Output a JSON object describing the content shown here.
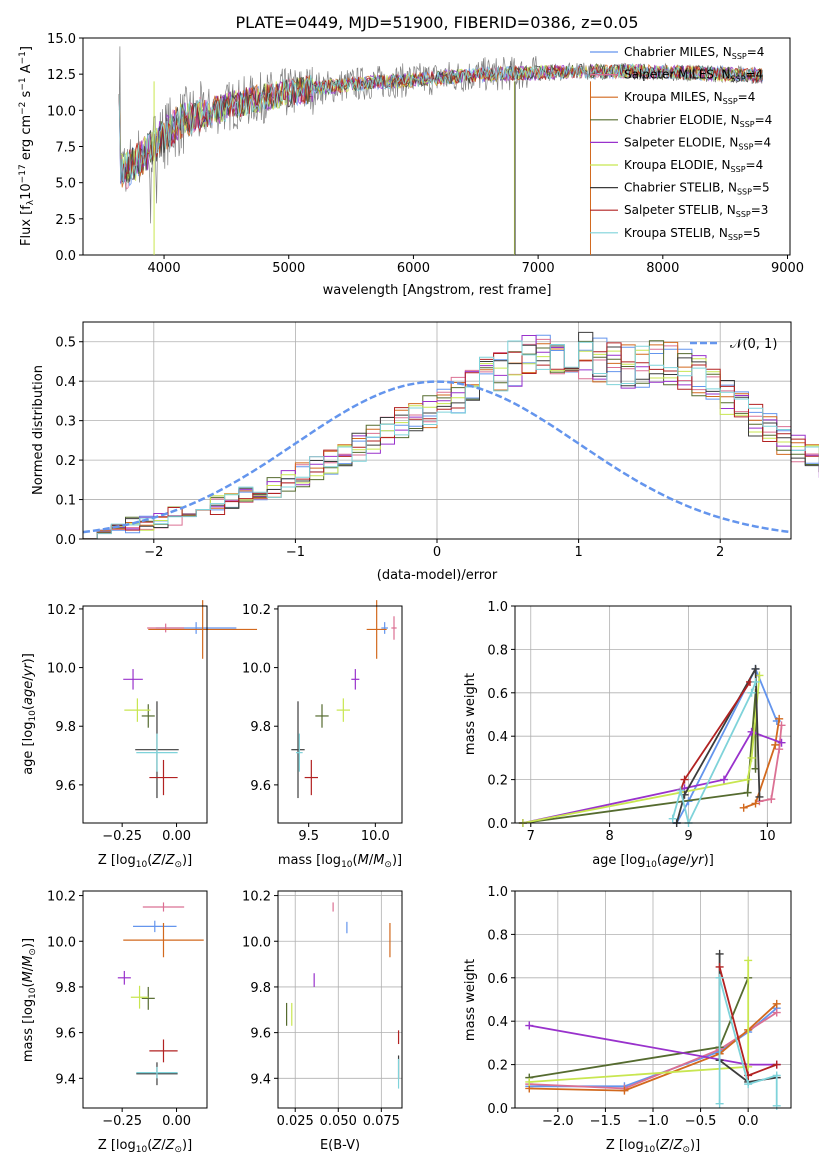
{
  "chart_data": [
    {
      "id": "spectrum",
      "type": "line",
      "title": "PLATE=0449, MJD=51900, FIBERID=0386, z=0.05",
      "xlabel": "wavelength [Angstrom, rest frame]",
      "ylabel": "Flux [f_λ 10^-17 erg cm^-2 s^-1 A^-1]",
      "xlim": [
        3350,
        9020
      ],
      "ylim": [
        0,
        15
      ],
      "xticks": [
        "4000",
        "5000",
        "6000",
        "7000",
        "8000",
        "9000"
      ],
      "yticks": [
        "0.0",
        "2.5",
        "5.0",
        "7.5",
        "10.0",
        "12.5",
        "15.0"
      ],
      "legend_position": "upper-right",
      "data_color": "#808080",
      "continuum": {
        "x": [
          3650,
          3700,
          3800,
          3900,
          4000,
          4100,
          4200,
          4400,
          4600,
          4800,
          5000,
          5200,
          5500,
          5800,
          6000,
          6300,
          6600,
          7000,
          7400,
          7800,
          8200,
          8600,
          8800
        ],
        "y": [
          6.0,
          5.8,
          6.6,
          7.4,
          8.3,
          9.0,
          9.4,
          10.0,
          10.5,
          10.9,
          11.2,
          11.5,
          11.8,
          12.0,
          12.1,
          12.3,
          12.5,
          12.6,
          12.7,
          12.7,
          12.6,
          12.5,
          12.4
        ]
      },
      "series": [
        {
          "name": "Chabrier MILES, N_SSP=4",
          "color": "#6495ED"
        },
        {
          "name": "Salpeter MILES, N_SSP=4",
          "color": "#DB7093"
        },
        {
          "name": "Kroupa MILES, N_SSP=4",
          "color": "#D2691E"
        },
        {
          "name": "Chabrier ELODIE, N_SSP=4",
          "color": "#556B2F"
        },
        {
          "name": "Salpeter ELODIE, N_SSP=4",
          "color": "#9932CC"
        },
        {
          "name": "Kroupa ELODIE, N_SSP=4",
          "color": "#C8E650"
        },
        {
          "name": "Chabrier STELIB, N_SSP=5",
          "color": "#3C3C3C"
        },
        {
          "name": "Salpeter STELIB, N_SSP=3",
          "color": "#B22222"
        },
        {
          "name": "Kroupa STELIB, N_SSP=5",
          "color": "#7FD3DA"
        }
      ]
    },
    {
      "id": "residuals",
      "type": "histogram",
      "xlabel": "(data-model)/error",
      "ylabel": "Normed distribution",
      "xlim": [
        -2.5,
        2.5
      ],
      "ylim": [
        0,
        0.55
      ],
      "xticks": [
        "−2",
        "−1",
        "0",
        "1",
        "2"
      ],
      "yticks": [
        "0.0",
        "0.1",
        "0.2",
        "0.3",
        "0.4",
        "0.5"
      ],
      "legend": "𝒩(0, 1)",
      "legend_position": "upper-right",
      "bin_width": 0.1,
      "bins_from": -2.5,
      "base_values": [
        0.02,
        0.025,
        0.03,
        0.035,
        0.042,
        0.05,
        0.058,
        0.066,
        0.075,
        0.085,
        0.095,
        0.107,
        0.12,
        0.133,
        0.147,
        0.162,
        0.178,
        0.194,
        0.212,
        0.23,
        0.25,
        0.27,
        0.29,
        0.31,
        0.33,
        0.35,
        0.37,
        0.39,
        0.41,
        0.43,
        0.445,
        0.46,
        0.47,
        0.475,
        0.472,
        0.465,
        0.455,
        0.445,
        0.44,
        0.44,
        0.445,
        0.445,
        0.43,
        0.41,
        0.39,
        0.36,
        0.33,
        0.3,
        0.275,
        0.25,
        0.23,
        0.21,
        0.19,
        0.172,
        0.155,
        0.14,
        0.125,
        0.112,
        0.1,
        0.088,
        0.077,
        0.067,
        0.058,
        0.05,
        0.043,
        0.037,
        0.032,
        0.027,
        0.023,
        0.02
      ],
      "normal_curve_color": "#6495ED"
    },
    {
      "id": "age-vs-Z",
      "type": "errorbar",
      "xlabel": "Z [log10(Z/Z⊙)]",
      "ylabel": "age [log10(age/yr)]",
      "xlim": [
        -0.43,
        0.14
      ],
      "ylim": [
        9.47,
        10.21
      ],
      "xticks": [
        "−0.25",
        "0.00"
      ],
      "yticks": [
        "9.6",
        "9.8",
        "10.0",
        "10.2"
      ],
      "points": [
        {
          "series": "Chabrier MILES",
          "x": 0.09,
          "y": 10.135,
          "xerr": 0.37,
          "yerr": 0.04
        },
        {
          "series": "Salpeter MILES",
          "x": -0.05,
          "y": 10.135,
          "xerr": 0.17,
          "yerr": 0.03
        },
        {
          "series": "Kroupa MILES",
          "x": 0.12,
          "y": 10.13,
          "xerr": 0.5,
          "yerr": 0.2
        },
        {
          "series": "Chabrier ELODIE",
          "x": -0.13,
          "y": 9.835,
          "xerr": 0.06,
          "yerr": 0.08
        },
        {
          "series": "Salpeter ELODIE",
          "x": -0.2,
          "y": 9.96,
          "xerr": 0.09,
          "yerr": 0.07
        },
        {
          "series": "Kroupa ELODIE",
          "x": -0.18,
          "y": 9.855,
          "xerr": 0.12,
          "yerr": 0.08
        },
        {
          "series": "Chabrier STELIB",
          "x": -0.09,
          "y": 9.72,
          "xerr": 0.2,
          "yerr": 0.33
        },
        {
          "series": "Salpeter STELIB",
          "x": -0.06,
          "y": 9.625,
          "xerr": 0.13,
          "yerr": 0.12
        },
        {
          "series": "Kroupa STELIB",
          "x": -0.09,
          "y": 9.71,
          "xerr": 0.19,
          "yerr": 0.13
        }
      ]
    },
    {
      "id": "age-vs-mass",
      "type": "errorbar",
      "xlabel": "mass [log10(M/M⊙)]",
      "ylabel": "",
      "xlim": [
        9.27,
        10.2
      ],
      "ylim": [
        9.47,
        10.21
      ],
      "xticks": [
        "9.5",
        "10.0"
      ],
      "yticks": [
        "9.6",
        "9.8",
        "10.0",
        "10.2"
      ],
      "points": [
        {
          "series": "Chabrier MILES",
          "x": 10.07,
          "y": 10.135,
          "xerr": 0.05,
          "yerr": 0.04
        },
        {
          "series": "Salpeter MILES",
          "x": 10.14,
          "y": 10.135,
          "xerr": 0.04,
          "yerr": 0.08
        },
        {
          "series": "Kroupa MILES",
          "x": 10.01,
          "y": 10.13,
          "xerr": 0.15,
          "yerr": 0.2
        },
        {
          "series": "Chabrier ELODIE",
          "x": 9.6,
          "y": 9.835,
          "xerr": 0.1,
          "yerr": 0.08
        },
        {
          "series": "Salpeter ELODIE",
          "x": 9.85,
          "y": 9.96,
          "xerr": 0.06,
          "yerr": 0.07
        },
        {
          "series": "Kroupa ELODIE",
          "x": 9.76,
          "y": 9.855,
          "xerr": 0.1,
          "yerr": 0.08
        },
        {
          "series": "Chabrier STELIB",
          "x": 9.42,
          "y": 9.72,
          "xerr": 0.1,
          "yerr": 0.33
        },
        {
          "series": "Salpeter STELIB",
          "x": 9.52,
          "y": 9.625,
          "xerr": 0.1,
          "yerr": 0.12
        },
        {
          "series": "Kroupa STELIB",
          "x": 9.43,
          "y": 9.71,
          "xerr": 0.05,
          "yerr": 0.13
        }
      ]
    },
    {
      "id": "mass-weight-vs-age",
      "type": "line",
      "xlabel": "age [log10(age/yr)]",
      "ylabel": "mass weight",
      "xlim": [
        6.8,
        10.3
      ],
      "ylim": [
        0,
        1
      ],
      "xticks": [
        "7",
        "8",
        "9",
        "10"
      ],
      "yticks": [
        "0.0",
        "0.2",
        "0.4",
        "0.6",
        "0.8",
        "1.0"
      ],
      "series": [
        {
          "series": "Chabrier MILES",
          "x": [
            8.85,
            9.0,
            9.85,
            10.12
          ],
          "y": [
            0.0,
            0.1,
            0.71,
            0.47
          ]
        },
        {
          "series": "Salpeter MILES",
          "x": [
            9.9,
            10.05,
            10.15,
            10.18
          ],
          "y": [
            0.1,
            0.11,
            0.34,
            0.45
          ]
        },
        {
          "series": "Kroupa MILES",
          "x": [
            9.7,
            9.85,
            10.1,
            10.15
          ],
          "y": [
            0.07,
            0.09,
            0.36,
            0.48
          ]
        },
        {
          "series": "Chabrier ELODIE",
          "x": [
            6.9,
            9.75,
            9.85,
            9.85
          ],
          "y": [
            0.0,
            0.14,
            0.6,
            0.25
          ]
        },
        {
          "series": "Salpeter ELODIE",
          "x": [
            6.9,
            8.95,
            9.45,
            9.8,
            10.18
          ],
          "y": [
            0.0,
            0.16,
            0.2,
            0.42,
            0.37
          ]
        },
        {
          "series": "Kroupa ELODIE",
          "x": [
            6.9,
            9.75,
            9.8,
            9.9
          ],
          "y": [
            0.0,
            0.2,
            0.3,
            0.68
          ]
        },
        {
          "series": "Chabrier STELIB",
          "x": [
            8.85,
            8.95,
            9.85,
            9.9
          ],
          "y": [
            0.0,
            0.13,
            0.71,
            0.12
          ]
        },
        {
          "series": "Salpeter STELIB",
          "x": [
            8.9,
            8.95,
            9.78
          ],
          "y": [
            0.15,
            0.2,
            0.65
          ]
        },
        {
          "series": "Kroupa STELIB",
          "x": [
            8.8,
            8.9,
            9.0,
            9.8,
            9.85
          ],
          "y": [
            0.02,
            0.15,
            0.0,
            0.6,
            0.65
          ]
        }
      ]
    },
    {
      "id": "mass-vs-Z",
      "type": "errorbar",
      "xlabel": "Z [log10(Z/Z⊙)]",
      "ylabel": "mass [log10(M/M⊙)]",
      "xlim": [
        -0.43,
        0.14
      ],
      "ylim": [
        9.27,
        10.22
      ],
      "xticks": [
        "−0.25",
        "0.00"
      ],
      "yticks": [
        "9.4",
        "9.6",
        "9.8",
        "10.0",
        "10.2"
      ],
      "points": [
        {
          "series": "Chabrier MILES",
          "x": -0.1,
          "y": 10.065,
          "xerr": 0.2,
          "yerr": 0.05
        },
        {
          "series": "Salpeter MILES",
          "x": -0.06,
          "y": 10.15,
          "xerr": 0.19,
          "yerr": 0.04
        },
        {
          "series": "Kroupa MILES",
          "x": -0.06,
          "y": 10.005,
          "xerr": 0.37,
          "yerr": 0.15
        },
        {
          "series": "Chabrier ELODIE",
          "x": -0.13,
          "y": 9.75,
          "xerr": 0.06,
          "yerr": 0.1
        },
        {
          "series": "Salpeter ELODIE",
          "x": -0.24,
          "y": 9.84,
          "xerr": 0.06,
          "yerr": 0.06
        },
        {
          "series": "Kroupa ELODIE",
          "x": -0.17,
          "y": 9.755,
          "xerr": 0.08,
          "yerr": 0.1
        },
        {
          "series": "Chabrier STELIB",
          "x": -0.09,
          "y": 9.42,
          "xerr": 0.19,
          "yerr": 0.1
        },
        {
          "series": "Salpeter STELIB",
          "x": -0.06,
          "y": 9.52,
          "xerr": 0.13,
          "yerr": 0.1
        },
        {
          "series": "Kroupa STELIB",
          "x": -0.09,
          "y": 9.425,
          "xerr": 0.19,
          "yerr": 0.05
        }
      ]
    },
    {
      "id": "ebv-vs-mass",
      "type": "errorbar",
      "xlabel": "E(B-V)",
      "ylabel": "",
      "xlim": [
        0.015,
        0.087
      ],
      "ylim": [
        9.27,
        10.22
      ],
      "xticks": [
        "0.025",
        "0.050",
        "0.075"
      ],
      "yticks": [
        "9.4",
        "9.6",
        "9.8",
        "10.0",
        "10.2"
      ],
      "points": [
        {
          "series": "Chabrier MILES",
          "x": 0.055,
          "y": 10.06,
          "yerr": 0.05
        },
        {
          "series": "Salpeter MILES",
          "x": 0.047,
          "y": 10.15,
          "yerr": 0.04
        },
        {
          "series": "Kroupa MILES",
          "x": 0.08,
          "y": 10.005,
          "yerr": 0.15
        },
        {
          "series": "Chabrier ELODIE",
          "x": 0.02,
          "y": 9.68,
          "yerr": 0.1
        },
        {
          "series": "Salpeter ELODIE",
          "x": 0.036,
          "y": 9.83,
          "yerr": 0.06
        },
        {
          "series": "Kroupa ELODIE",
          "x": 0.023,
          "y": 9.68,
          "yerr": 0.1
        },
        {
          "series": "Chabrier STELIB",
          "x": 0.085,
          "y": 9.45,
          "yerr": 0.1
        },
        {
          "series": "Salpeter STELIB",
          "x": 0.085,
          "y": 9.58,
          "yerr": 0.06
        },
        {
          "series": "Kroupa STELIB",
          "x": 0.085,
          "y": 9.42,
          "yerr": 0.13
        }
      ]
    },
    {
      "id": "mass-weight-vs-Z",
      "type": "line",
      "xlabel": "Z [log10(Z/Z⊙)]",
      "ylabel": "mass weight",
      "xlim": [
        -2.45,
        0.45
      ],
      "ylim": [
        0,
        1
      ],
      "xticks": [
        "−2.0",
        "−1.5",
        "−1.0",
        "−0.5",
        "0.0"
      ],
      "yticks": [
        "0.0",
        "0.2",
        "0.4",
        "0.6",
        "0.8",
        "1.0"
      ],
      "series": [
        {
          "series": "Chabrier MILES",
          "x": [
            -2.3,
            -1.3,
            -0.3,
            0.0,
            0.3
          ],
          "y": [
            0.1,
            0.1,
            0.26,
            0.35,
            0.46
          ]
        },
        {
          "series": "Salpeter MILES",
          "x": [
            -2.3,
            -1.3,
            -0.3,
            0.3
          ],
          "y": [
            0.11,
            0.09,
            0.27,
            0.44
          ]
        },
        {
          "series": "Kroupa MILES",
          "x": [
            -2.3,
            -1.3,
            -0.3,
            0.0,
            0.3
          ],
          "y": [
            0.09,
            0.08,
            0.25,
            0.36,
            0.48
          ]
        },
        {
          "series": "Chabrier ELODIE",
          "x": [
            -2.3,
            -0.3,
            0.0
          ],
          "y": [
            0.14,
            0.28,
            0.6
          ]
        },
        {
          "series": "Salpeter ELODIE",
          "x": [
            -2.3,
            0.0,
            0.3
          ],
          "y": [
            0.38,
            0.2,
            0.2
          ]
        },
        {
          "series": "Kroupa ELODIE",
          "x": [
            -2.3,
            0.0,
            0.0
          ],
          "y": [
            0.12,
            0.19,
            0.68
          ]
        },
        {
          "series": "Chabrier STELIB",
          "x": [
            -0.3,
            -0.3,
            0.0,
            0.3
          ],
          "y": [
            0.71,
            0.22,
            0.12,
            0.14
          ]
        },
        {
          "series": "Salpeter STELIB",
          "x": [
            -0.3,
            0.0,
            0.3
          ],
          "y": [
            0.65,
            0.15,
            0.2
          ]
        },
        {
          "series": "Kroupa STELIB",
          "x": [
            -0.3,
            -0.3,
            0.0,
            0.3,
            0.3
          ],
          "y": [
            0.02,
            0.6,
            0.11,
            0.15,
            0.01
          ]
        }
      ]
    }
  ]
}
